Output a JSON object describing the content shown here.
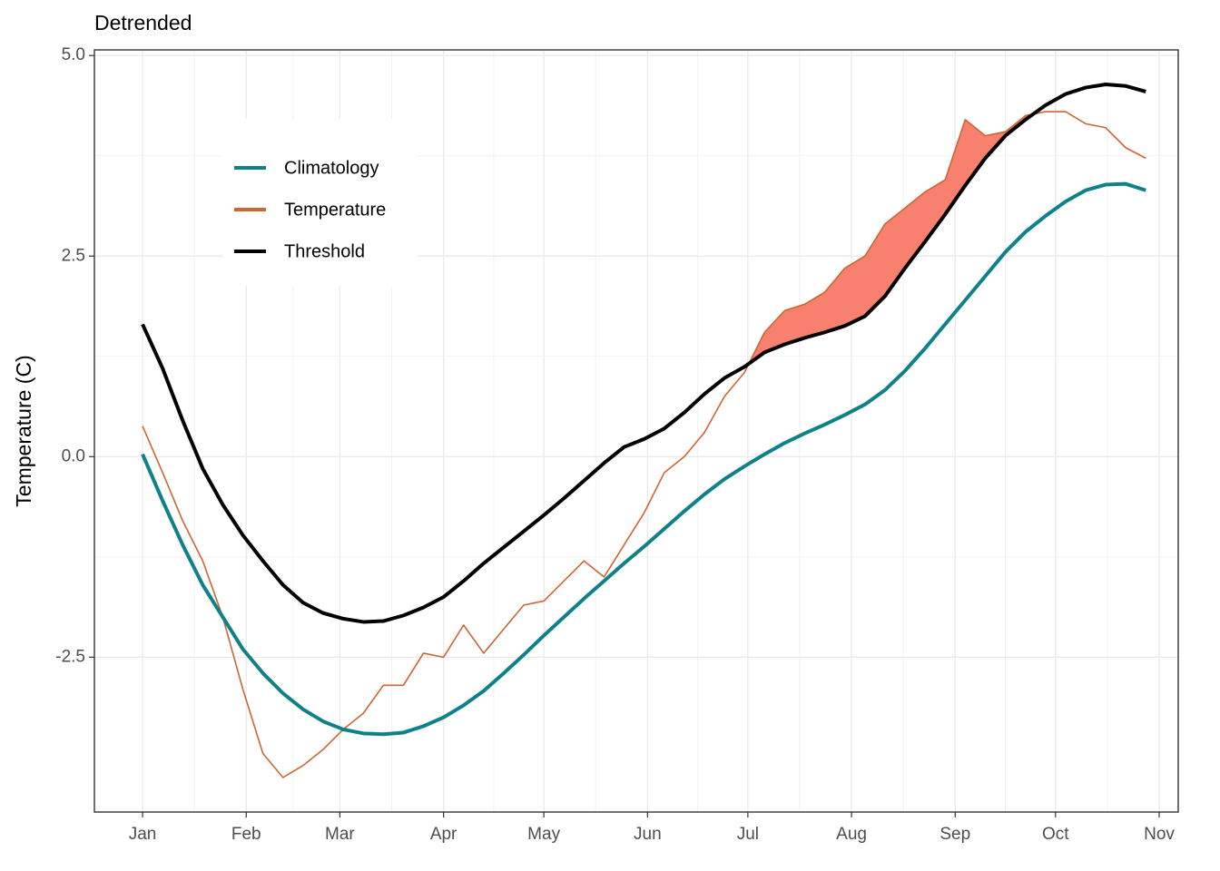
{
  "chart_data": {
    "type": "line",
    "title": "Detrended",
    "y_label": "Temperature (C)",
    "x": [
      0,
      6,
      12,
      18,
      24,
      30,
      36,
      42,
      48,
      54,
      60,
      66,
      72,
      78,
      84,
      90,
      96,
      102,
      108,
      114,
      120,
      126,
      132,
      138,
      144,
      150,
      156,
      162,
      168,
      174,
      180,
      186,
      192,
      198,
      204,
      210,
      216,
      222,
      228,
      234,
      240,
      246,
      252,
      258,
      264,
      270,
      276,
      282,
      288,
      294,
      300
    ],
    "xlim": [
      -14.4,
      309.7
    ],
    "xticks": [
      {
        "value": 0,
        "label": "Jan"
      },
      {
        "value": 31,
        "label": "Feb"
      },
      {
        "value": 59,
        "label": "Mar"
      },
      {
        "value": 90,
        "label": "Apr"
      },
      {
        "value": 120,
        "label": "May"
      },
      {
        "value": 151,
        "label": "Jun"
      },
      {
        "value": 181,
        "label": "Jul"
      },
      {
        "value": 212,
        "label": "Aug"
      },
      {
        "value": 243,
        "label": "Sep"
      },
      {
        "value": 273,
        "label": "Oct"
      },
      {
        "value": 304,
        "label": "Nov"
      }
    ],
    "ylim": [
      -4.43,
      5.07
    ],
    "yticks": [
      {
        "value": -2.5,
        "label": "-2.5"
      },
      {
        "value": 0,
        "label": "0.0"
      },
      {
        "value": 2.5,
        "label": "2.5"
      },
      {
        "value": 5,
        "label": "5.0"
      }
    ],
    "grid": true,
    "legend": "upper-left",
    "event_color": "#f8806e",
    "series": [
      {
        "name": "Climatology",
        "color": "#0e8189",
        "width": 4,
        "values": [
          0.03,
          -0.55,
          -1.1,
          -1.6,
          -2.0,
          -2.4,
          -2.7,
          -2.95,
          -3.15,
          -3.3,
          -3.4,
          -3.45,
          -3.46,
          -3.44,
          -3.36,
          -3.25,
          -3.1,
          -2.92,
          -2.7,
          -2.47,
          -2.23,
          -2.0,
          -1.77,
          -1.55,
          -1.33,
          -1.12,
          -0.9,
          -0.68,
          -0.47,
          -0.28,
          -0.12,
          0.03,
          0.17,
          0.29,
          0.4,
          0.52,
          0.65,
          0.83,
          1.07,
          1.35,
          1.65,
          1.95,
          2.25,
          2.55,
          2.8,
          3.0,
          3.18,
          3.32,
          3.39,
          3.4,
          3.32
        ]
      },
      {
        "name": "Temperature",
        "color": "#cc6633",
        "width": 1.6,
        "values": [
          0.38,
          -0.2,
          -0.8,
          -1.3,
          -2.0,
          -2.9,
          -3.7,
          -4.0,
          -3.85,
          -3.65,
          -3.4,
          -3.2,
          -2.85,
          -2.85,
          -2.45,
          -2.5,
          -2.1,
          -2.45,
          -2.15,
          -1.85,
          -1.8,
          -1.55,
          -1.3,
          -1.5,
          -1.1,
          -0.7,
          -0.2,
          0.0,
          0.3,
          0.75,
          1.05,
          1.55,
          1.82,
          1.9,
          2.05,
          2.35,
          2.5,
          2.9,
          3.1,
          3.3,
          3.45,
          4.2,
          4.0,
          4.05,
          4.25,
          4.3,
          4.3,
          4.15,
          4.1,
          3.85,
          3.72
        ]
      },
      {
        "name": "Threshold",
        "color": "#000000",
        "width": 4,
        "values": [
          1.65,
          1.1,
          0.45,
          -0.15,
          -0.6,
          -0.98,
          -1.3,
          -1.6,
          -1.82,
          -1.95,
          -2.02,
          -2.06,
          -2.05,
          -1.98,
          -1.88,
          -1.75,
          -1.55,
          -1.33,
          -1.13,
          -0.93,
          -0.73,
          -0.52,
          -0.3,
          -0.08,
          0.12,
          0.22,
          0.35,
          0.55,
          0.78,
          0.98,
          1.12,
          1.3,
          1.4,
          1.48,
          1.55,
          1.63,
          1.75,
          2.0,
          2.35,
          2.68,
          3.02,
          3.38,
          3.72,
          4.0,
          4.2,
          4.38,
          4.52,
          4.6,
          4.64,
          4.62,
          4.55
        ]
      }
    ]
  }
}
